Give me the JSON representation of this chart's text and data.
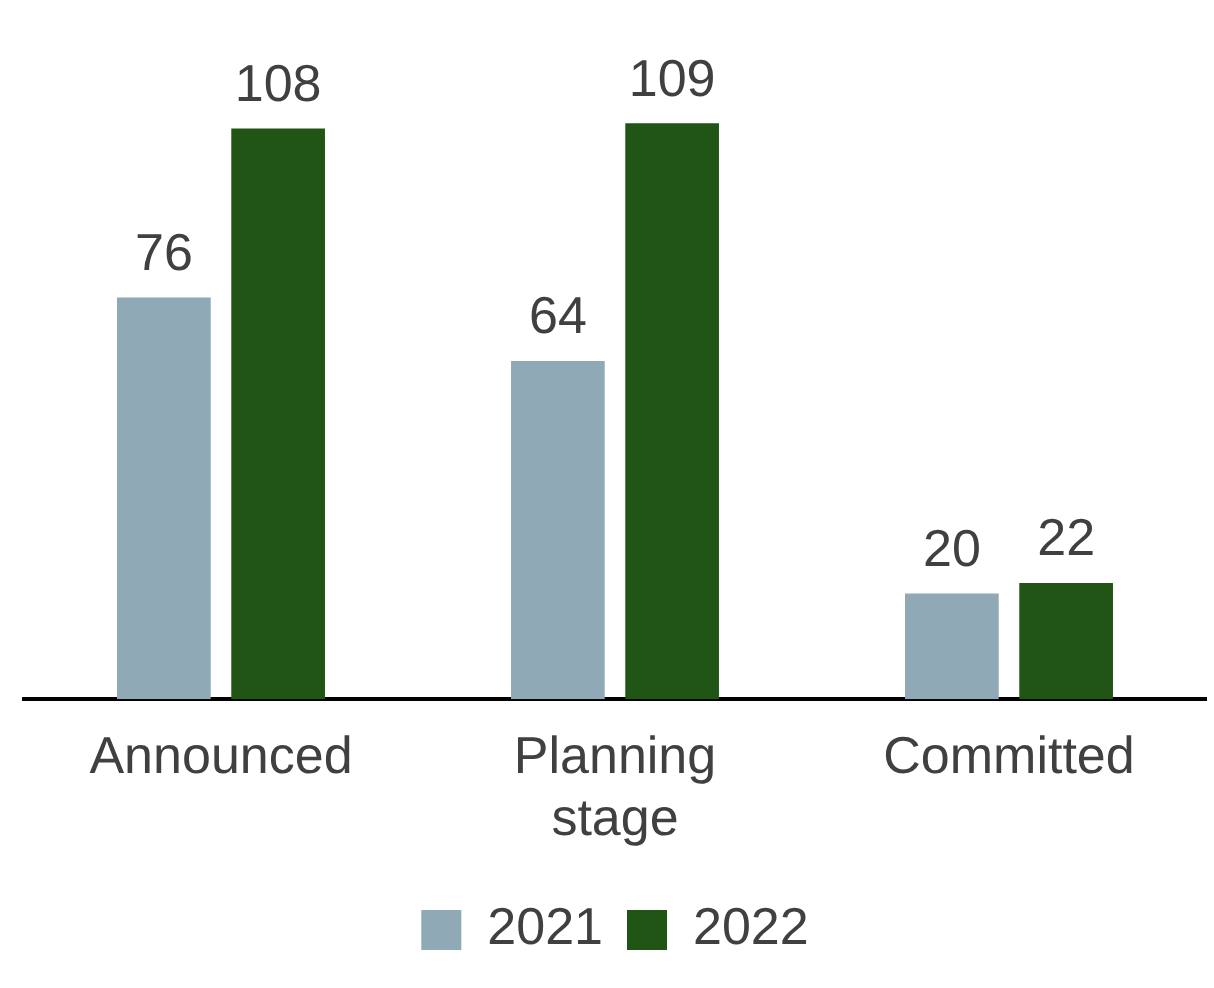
{
  "chart_data": {
    "type": "bar",
    "categories": [
      "Announced",
      "Planning stage",
      "Committed"
    ],
    "series": [
      {
        "name": "2021",
        "color": "#8fa9b6",
        "values": [
          76,
          64,
          20
        ]
      },
      {
        "name": "2022",
        "color": "#215515",
        "values": [
          108,
          109,
          22
        ]
      }
    ],
    "data_labels": true,
    "legend": "bottom",
    "grid": false
  }
}
